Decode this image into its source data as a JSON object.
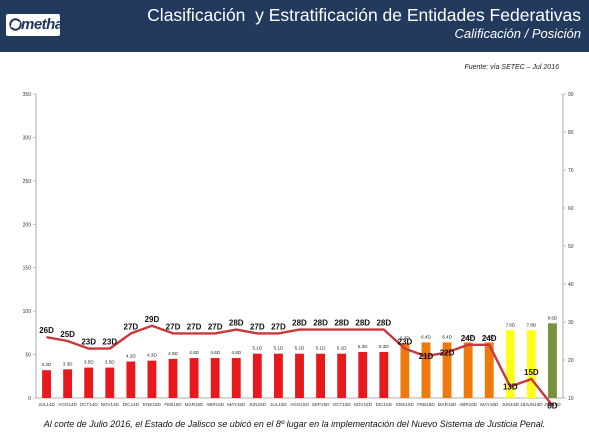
{
  "header": {
    "logo_text": "metha",
    "title": "Clasificación  y Estratificación de Entidades Federativas",
    "subtitle": "Calificación / Posición"
  },
  "source_note": "Fuente: vía SETEC – Jul 2016",
  "footnote": "Al corte de Julio 2016, el Estado de Jalisco se ubicó en el 8º lugar en la implementación del Nuevo Sistema de Justicia Penal.",
  "colors": {
    "header_bg": "#223a5e",
    "red": "#e8191c",
    "orange": "#ee7a0e",
    "yellow": "#ffff1a",
    "green": "#77923c",
    "line": "#c8383c"
  },
  "chart_data": {
    "type": "bar",
    "categories": [
      "JUL14D",
      "AGO14D",
      "OCT14D",
      "NOV14D",
      "DIC14D",
      "ENE15D",
      "FEB15D",
      "MAR15D",
      "ABR15D",
      "MAY15D",
      "JUN15D",
      "JUL15D",
      "AGO15D",
      "SEP15D",
      "OCT15D",
      "NOV15D",
      "DIC15D",
      "ENE16D",
      "FEB16D",
      "MAR16D",
      "ABR16D",
      "MAY16D",
      "JUN16D",
      "18JUN16D",
      "JUL16D"
    ],
    "series": [
      {
        "values": [
          3.2,
          3.3,
          3.5,
          3.5,
          4.2,
          4.3,
          4.5,
          4.6,
          4.6,
          4.6,
          5.1,
          5.1,
          5.1,
          5.1,
          5.1,
          5.3,
          5.3,
          6.3,
          6.4,
          6.4,
          6.4,
          6.4,
          7.8,
          7.8,
          8.6
        ],
        "labels": [
          "3.2D",
          "3.3D",
          "3.5D",
          "3.5D",
          "4.2D",
          "4.3D",
          "4.5D",
          "4.6D",
          "4.6D",
          "4.6D",
          "5.1D",
          "5.1D",
          "5.1D",
          "5.1D",
          "5.1D",
          "5.3D",
          "5.3D",
          "6.3D",
          "6.4D",
          "6.4D",
          "6.4D",
          "6.4D",
          "7.8D",
          "7.8D",
          "8.6D"
        ],
        "colors": [
          "red",
          "red",
          "red",
          "red",
          "red",
          "red",
          "red",
          "red",
          "red",
          "red",
          "red",
          "red",
          "red",
          "red",
          "red",
          "red",
          "red",
          "orange",
          "orange",
          "orange",
          "orange",
          "orange",
          "yellow",
          "yellow",
          "green"
        ]
      },
      {
        "values": [
          26,
          25,
          23,
          23,
          27,
          29,
          27,
          27,
          27,
          28,
          27,
          27,
          28,
          28,
          28,
          28,
          28,
          23,
          21,
          22,
          24,
          24,
          13,
          15,
          8
        ],
        "labels": [
          "26D",
          "25D",
          "23D",
          "23D",
          "27D",
          "29D",
          "27D",
          "27D",
          "27D",
          "28D",
          "27D",
          "27D",
          "28D",
          "28D",
          "28D",
          "28D",
          "28D",
          "23D",
          "21D",
          "22D",
          "24D",
          "24D",
          "13D",
          "15D",
          "8D"
        ]
      }
    ],
    "left_axis": {
      "ticks": [
        0,
        50,
        100,
        150,
        200,
        250,
        300,
        350
      ],
      "ylim": [
        0,
        350
      ]
    },
    "right_axis": {
      "ticks": [
        10,
        20,
        30,
        40,
        50,
        60,
        70,
        80,
        90
      ],
      "ylim": [
        10,
        90
      ]
    }
  }
}
